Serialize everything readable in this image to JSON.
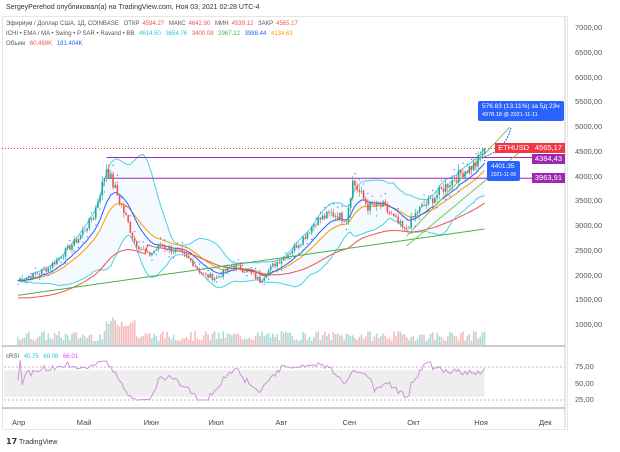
{
  "header": {
    "published": "SergeyPerehod опубликовал(а) на TradingView.com, Ноя 03, 2021 02:28 UTC-4"
  },
  "legend": {
    "symbol": "Эфириум / Доллар США, 1Д, COINBASE",
    "open_label": "ОТКР",
    "open": "4594.27",
    "high_label": "МАКС",
    "high": "4642.90",
    "low_label": "МИН",
    "low": "4539.12",
    "close_label": "ЗАКР",
    "close": "4565.17",
    "indicators": "ICHI • EMA / MA • Swing • P SAR • Ravand  • BB",
    "ind_values": [
      "4614.50",
      "3654.76",
      "3400.08",
      "2967.12",
      "3988.44",
      "4134.63"
    ],
    "volume_label": "Объем",
    "volume_values": [
      "60.469K",
      "181.404K"
    ],
    "rsi_label": "cRSI",
    "rsi_values": [
      "40.75",
      "68.06",
      "66.01"
    ]
  },
  "colors": {
    "up": "#26a69a",
    "down": "#ef5350",
    "symbol_tag": "#f23645",
    "level": "#9c27b0",
    "tip": "#2962ff"
  },
  "price_axis": [
    "7000,00",
    "6500,00",
    "6000,00",
    "5500,00",
    "5000,00",
    "4500,00",
    "4000,00",
    "3500,00",
    "3000,00",
    "2500,00",
    "2000,00",
    "1500,00",
    "1000,00"
  ],
  "rsi_axis": [
    "75,00",
    "50,00",
    "25,00"
  ],
  "time_axis": [
    "Апр",
    "Май",
    "Июн",
    "Июл",
    "Авг",
    "Сен",
    "Окт",
    "Ноя",
    "Дек"
  ],
  "tags": {
    "symbol": "ETHUSD",
    "last_price": "4565,17",
    "level1": "4384,43",
    "level2": "3963,91"
  },
  "measure": {
    "text": "576.83 (13.11%) за 5д 23ч",
    "sub": "4978.18 @ 2021-11-11"
  },
  "anchor": {
    "text": "4401.35",
    "sub": "2021-11-06"
  },
  "footer": {
    "logo": "TradingView"
  },
  "chart_data": {
    "type": "candlestick",
    "title": "Эфириум / Доллар США, 1Д, COINBASE",
    "x_unit": "days since 2021-04-01",
    "points": [
      [
        0,
        1900
      ],
      [
        7,
        2000
      ],
      [
        14,
        2150
      ],
      [
        20,
        2400
      ],
      [
        28,
        2750
      ],
      [
        35,
        3200
      ],
      [
        41,
        4170
      ],
      [
        48,
        3400
      ],
      [
        54,
        2700
      ],
      [
        60,
        2400
      ],
      [
        66,
        2600
      ],
      [
        73,
        2500
      ],
      [
        80,
        2300
      ],
      [
        86,
        2000
      ],
      [
        92,
        1950
      ],
      [
        99,
        2200
      ],
      [
        106,
        2100
      ],
      [
        112,
        1900
      ],
      [
        118,
        2200
      ],
      [
        124,
        2400
      ],
      [
        131,
        2700
      ],
      [
        138,
        3100
      ],
      [
        145,
        3250
      ],
      [
        152,
        3150
      ],
      [
        155,
        3900
      ],
      [
        162,
        3400
      ],
      [
        169,
        3400
      ],
      [
        179,
        2900
      ],
      [
        185,
        3300
      ],
      [
        192,
        3550
      ],
      [
        199,
        3850
      ],
      [
        206,
        4100
      ],
      [
        212,
        4250
      ],
      [
        216,
        4565
      ]
    ],
    "levels": [
      4384.43,
      3963.91
    ],
    "ylim": [
      1000,
      7200
    ],
    "rsi_range": [
      25,
      75
    ]
  }
}
